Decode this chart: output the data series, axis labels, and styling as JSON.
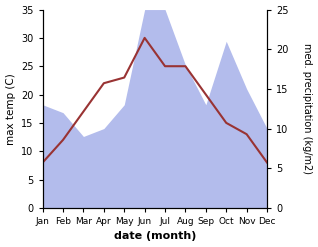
{
  "months": [
    "Jan",
    "Feb",
    "Mar",
    "Apr",
    "May",
    "Jun",
    "Jul",
    "Aug",
    "Sep",
    "Oct",
    "Nov",
    "Dec"
  ],
  "temperature": [
    8,
    12,
    17,
    22,
    23,
    30,
    25,
    25,
    20,
    15,
    13,
    8
  ],
  "precipitation": [
    13,
    12,
    9,
    10,
    13,
    25,
    25,
    18,
    13,
    21,
    15,
    10
  ],
  "temp_color": "#993333",
  "precip_color": "#b3bcec",
  "ylabel_left": "max temp (C)",
  "ylabel_right": "med. precipitation (kg/m2)",
  "xlabel": "date (month)",
  "ylim_left": [
    0,
    35
  ],
  "ylim_right": [
    0,
    25
  ],
  "left_ticks": [
    0,
    5,
    10,
    15,
    20,
    25,
    30,
    35
  ],
  "right_ticks": [
    0,
    5,
    10,
    15,
    20,
    25
  ],
  "bg_color": "#ffffff"
}
